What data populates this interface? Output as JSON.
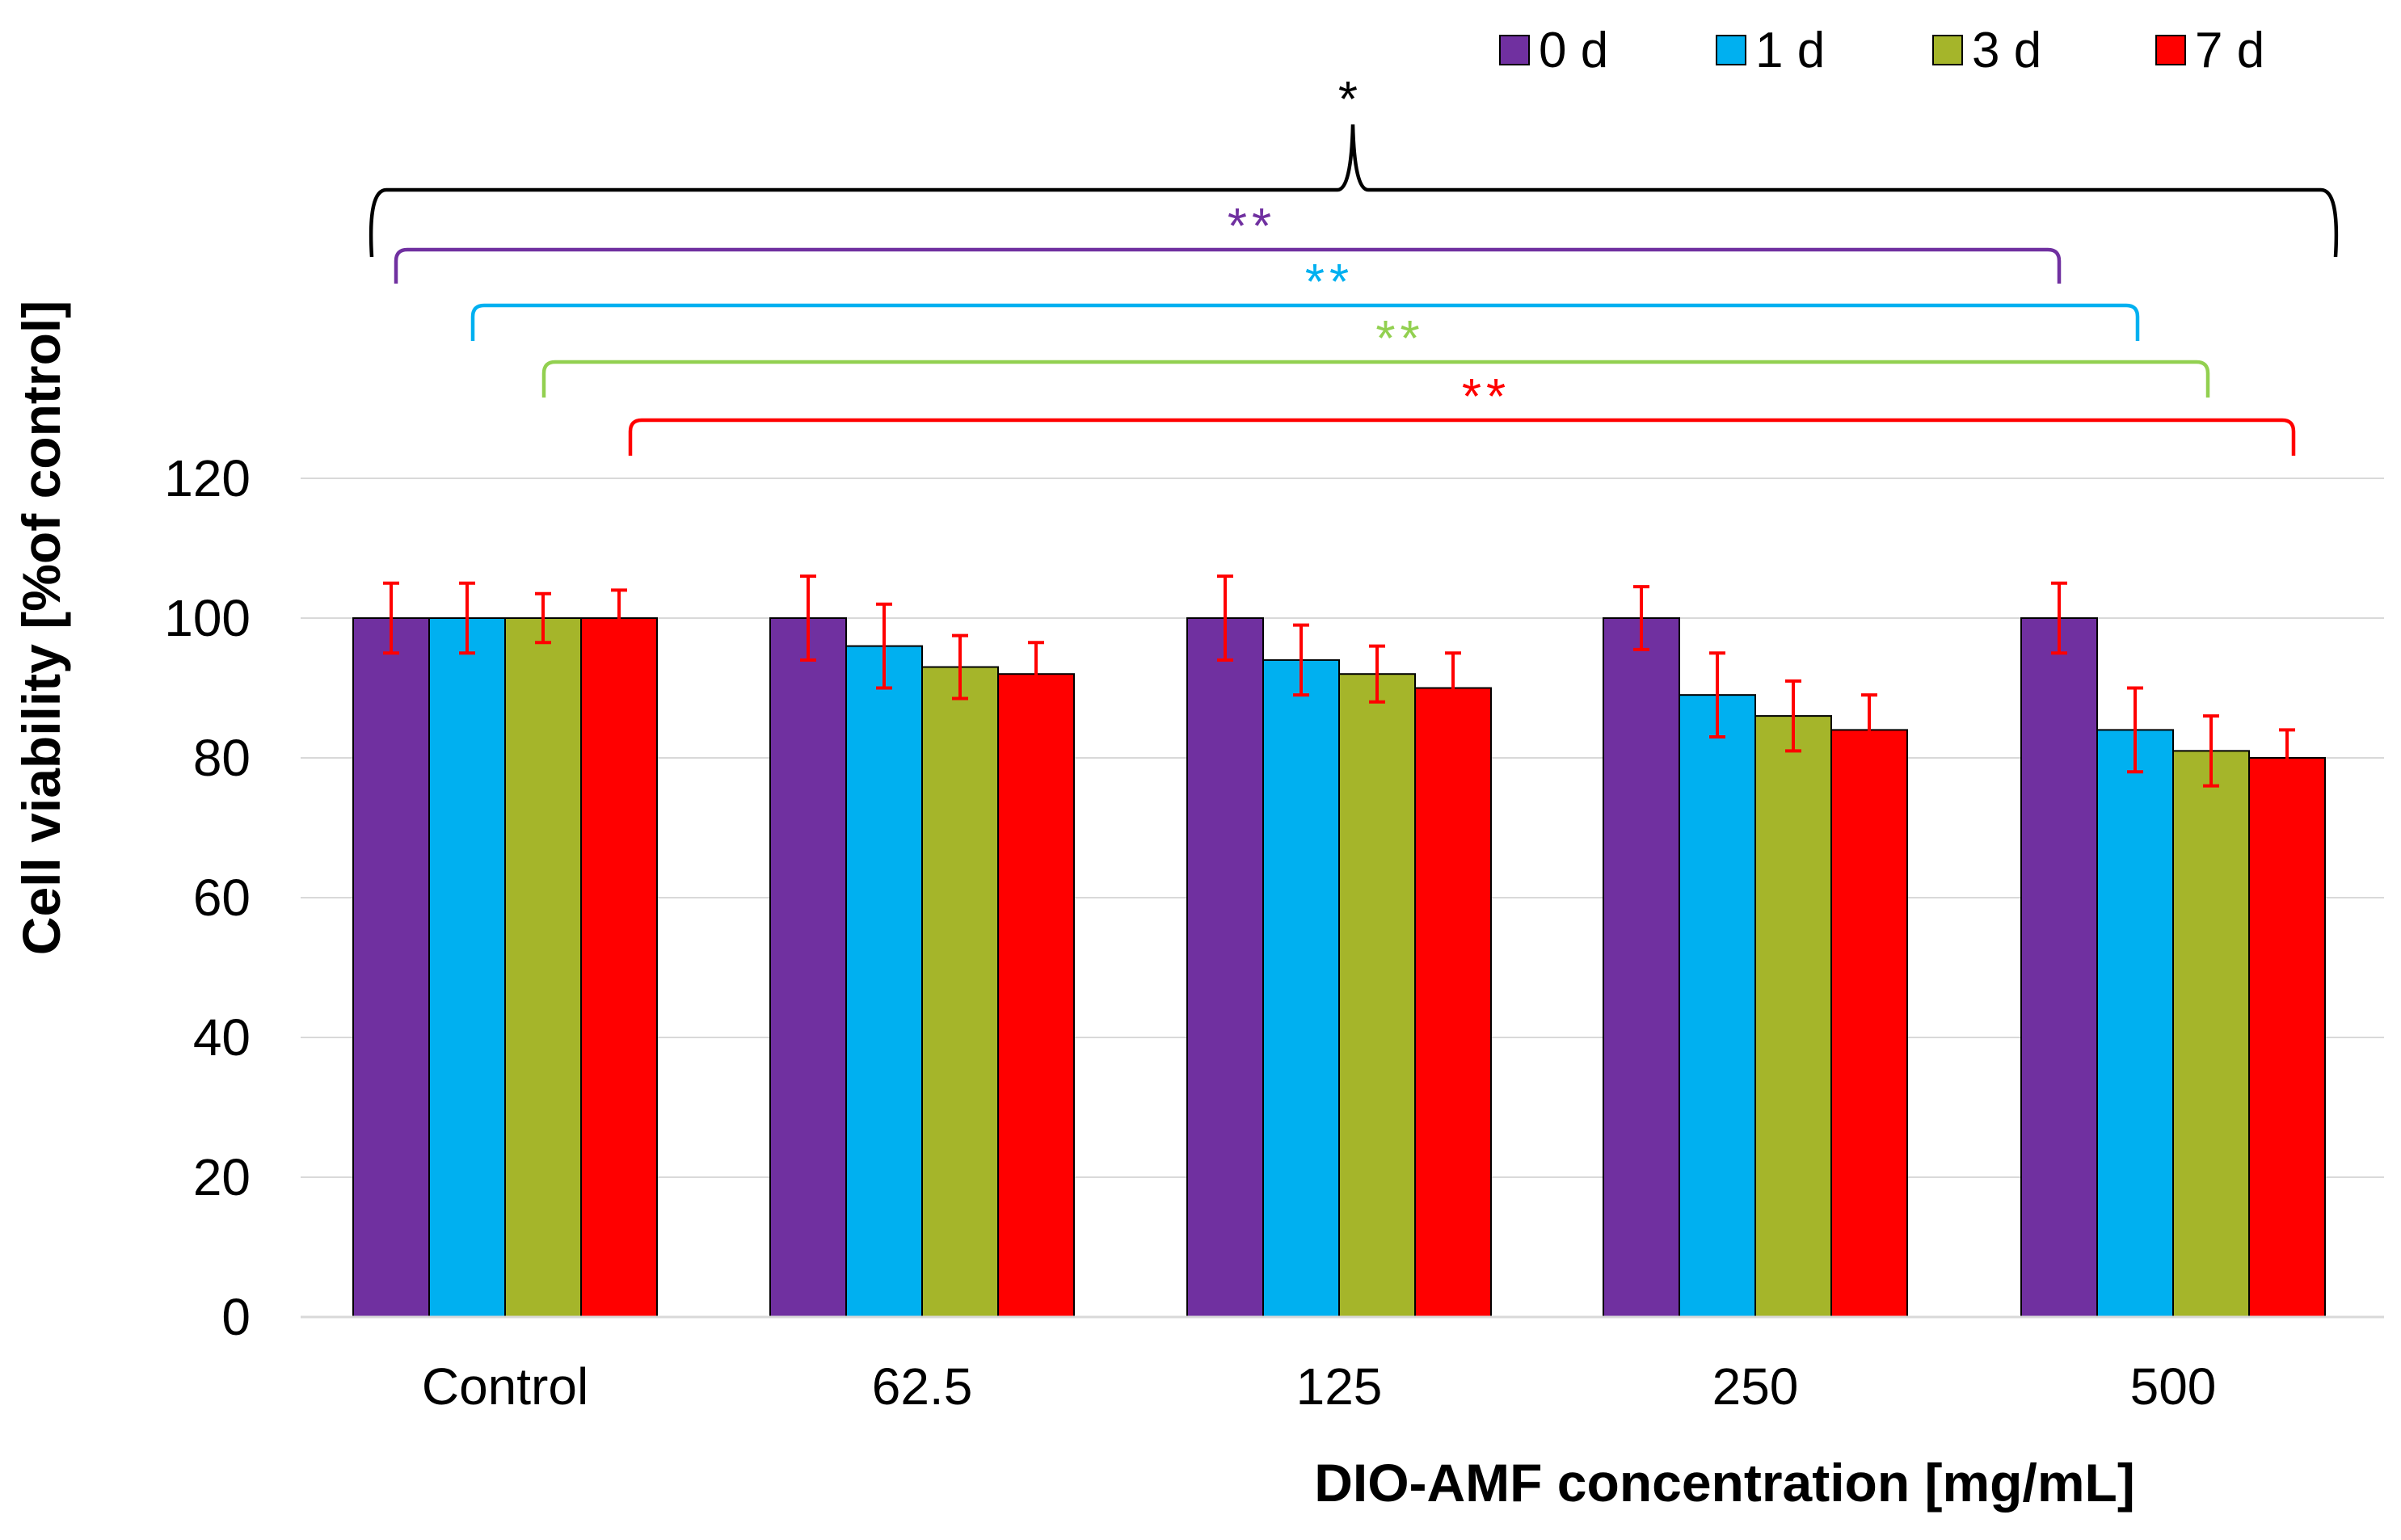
{
  "chart_data": {
    "type": "bar",
    "title": "",
    "xlabel": "DIO-AMF concentration [mg/mL]",
    "ylabel": "Cell viability [%of control]",
    "ylim": [
      0,
      120
    ],
    "yticks": [
      0,
      20,
      40,
      60,
      80,
      100,
      120
    ],
    "gridlines": true,
    "legend_position": "top-right",
    "categories": [
      "Control",
      "62.5",
      "125",
      "250",
      "500"
    ],
    "series": [
      {
        "name": "0 d",
        "color": "#7030A0",
        "values": [
          100,
          100,
          100,
          100,
          100
        ],
        "errors": [
          5,
          6,
          6,
          4.5,
          5
        ]
      },
      {
        "name": "1 d",
        "color": "#00B0F0",
        "values": [
          100,
          96,
          94,
          89,
          84
        ],
        "errors": [
          5,
          6,
          5,
          6,
          6
        ]
      },
      {
        "name": "3 d",
        "color": "#A5B52A",
        "values": [
          100,
          93,
          92,
          86,
          81
        ],
        "errors": [
          3.5,
          4.5,
          4,
          5,
          5
        ]
      },
      {
        "name": "7 d",
        "color": "#FF0000",
        "values": [
          100,
          92,
          90,
          84,
          80
        ],
        "errors": [
          4,
          4.5,
          5,
          5,
          4
        ]
      }
    ],
    "error_bar_color": "#FF0000",
    "significance": [
      {
        "label": "*",
        "color": "#000000",
        "shape": "brace"
      },
      {
        "label": "**",
        "color": "#7030A0",
        "series": "0 d"
      },
      {
        "label": "**",
        "color": "#00B0F0",
        "series": "1 d"
      },
      {
        "label": "**",
        "color": "#92D050",
        "series": "3 d"
      },
      {
        "label": "**",
        "color": "#FF0000",
        "series": "7 d"
      }
    ]
  }
}
